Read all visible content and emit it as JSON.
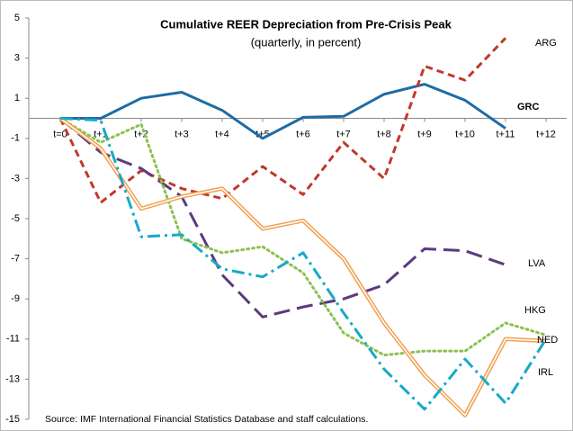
{
  "chart_data": {
    "type": "line",
    "title": "Cumulative REER Depreciation from Pre-Crisis Peak",
    "subtitle": "(quarterly, in percent)",
    "source": "Source: IMF International Financial Statistics Database and staff calculations.",
    "categories": [
      "t=0",
      "t+1",
      "t+2",
      "t+3",
      "t+4",
      "t+5",
      "t+6",
      "t+7",
      "t+8",
      "t+9",
      "t+10",
      "t+11",
      "t+12"
    ],
    "ylim": [
      -15,
      5
    ],
    "yticks": [
      5,
      3,
      1,
      -1,
      -3,
      -5,
      -7,
      -9,
      -11,
      -13,
      -15
    ],
    "series": [
      {
        "name": "GRC",
        "color": "#1f6ba5",
        "dash": "solid",
        "values": [
          0,
          0,
          1.0,
          1.3,
          0.4,
          -1.0,
          0.05,
          0.1,
          1.2,
          1.7,
          0.9,
          -0.5,
          null
        ]
      },
      {
        "name": "ARG",
        "color": "#c0392b",
        "dash": "dashed",
        "values": [
          0,
          -4.2,
          -2.6,
          -3.5,
          -4.0,
          -2.4,
          -3.8,
          -1.2,
          -3.0,
          2.6,
          1.9,
          4.0,
          null
        ]
      },
      {
        "name": "LVA",
        "color": "#5b3a7e",
        "dash": "longdash",
        "values": [
          0,
          -1.7,
          -2.5,
          -3.9,
          -7.8,
          -9.9,
          -9.4,
          -9.0,
          -8.3,
          -6.5,
          -6.6,
          -7.3,
          null
        ]
      },
      {
        "name": "HKG",
        "color": "#8cc152",
        "dash": "dotted",
        "values": [
          0,
          -1.2,
          -0.3,
          -6.0,
          -6.7,
          -6.4,
          -7.7,
          -10.7,
          -11.8,
          -11.6,
          -11.6,
          -10.2,
          -10.8
        ]
      },
      {
        "name": "NED",
        "color": "#f0a050",
        "dash": "double",
        "values": [
          0,
          -1.5,
          -4.5,
          -3.9,
          -3.5,
          -5.5,
          -5.1,
          -7.0,
          -10.2,
          -12.8,
          -14.8,
          -11.0,
          -11.1
        ]
      },
      {
        "name": "IRL",
        "color": "#17a9c9",
        "dash": "dashdot",
        "values": [
          0,
          -0.1,
          -5.9,
          -5.8,
          -7.5,
          -7.9,
          -6.7,
          -9.7,
          -12.5,
          -14.5,
          -12.0,
          -14.2,
          -11.0
        ]
      }
    ]
  }
}
